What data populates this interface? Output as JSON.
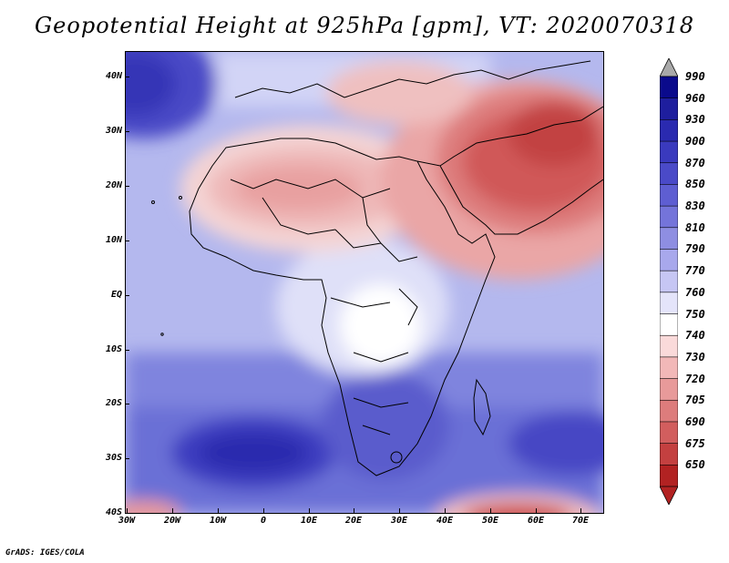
{
  "title": "Geopotential Height at 925hPa [gpm], VT: 2020070318",
  "footer": "GrADS: IGES/COLA",
  "axes": {
    "y_labels": [
      "40N",
      "30N",
      "20N",
      "10N",
      "EQ",
      "10S",
      "20S",
      "30S",
      "40S"
    ],
    "y_values": [
      40,
      30,
      20,
      10,
      0,
      -10,
      -20,
      -30,
      -40
    ],
    "x_labels": [
      "30W",
      "20W",
      "10W",
      "0",
      "10E",
      "20E",
      "30E",
      "40E",
      "50E",
      "60E",
      "70E"
    ],
    "x_values": [
      -30,
      -20,
      -10,
      0,
      10,
      20,
      30,
      40,
      50,
      60,
      70
    ],
    "lon_range": [
      -30,
      75
    ],
    "lat_range": [
      -40,
      45
    ]
  },
  "colorbar": {
    "labels": [
      "990",
      "960",
      "930",
      "900",
      "870",
      "850",
      "830",
      "810",
      "790",
      "770",
      "760",
      "750",
      "740",
      "730",
      "720",
      "705",
      "690",
      "675",
      "650"
    ],
    "colors": [
      "#0a0a8c",
      "#1e1e9e",
      "#2a2ab0",
      "#3a3abe",
      "#4a4ac8",
      "#5e5ed2",
      "#7474da",
      "#8e8ee2",
      "#a8a8ec",
      "#c6c6f4",
      "#e4e4fa",
      "#ffffff",
      "#fadada",
      "#f2b8b8",
      "#e89a9a",
      "#dd7c7c",
      "#d25e5e",
      "#c44040",
      "#b22222"
    ],
    "over_color": "#a9a9a9",
    "under_color": "#b22222"
  }
}
